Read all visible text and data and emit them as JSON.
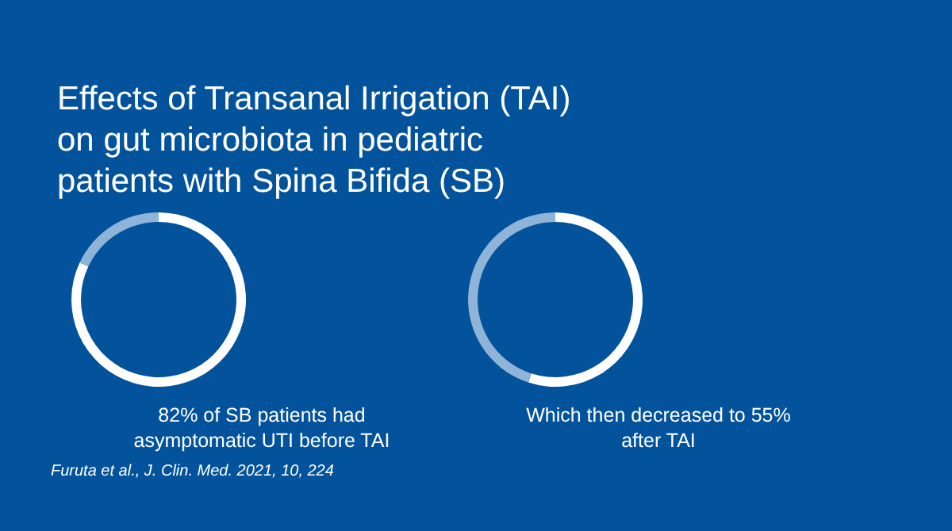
{
  "chart_data": [
    {
      "type": "donut",
      "title": "Effects of Transanal Irrigation (TAI) on gut microbiota in pediatric patients with Spina Bifida (SB)",
      "categories": [
        null,
        null
      ],
      "values": [
        82,
        18
      ],
      "colors": [
        "#ffffff",
        "#8fb4d8"
      ],
      "annotations": [
        "82% of SB patients had asymptomatic UTI before TAI",
        "Furuta et al., J. Clin. Med. 2021, 10, 224"
      ]
    },
    {
      "type": "donut",
      "categories": [
        null,
        null
      ],
      "values": [
        55,
        45
      ],
      "colors": [
        "#ffffff",
        "#8fb4d8"
      ],
      "annotations": [
        "Which then decreased to 55% after TAI"
      ]
    }
  ]
}
